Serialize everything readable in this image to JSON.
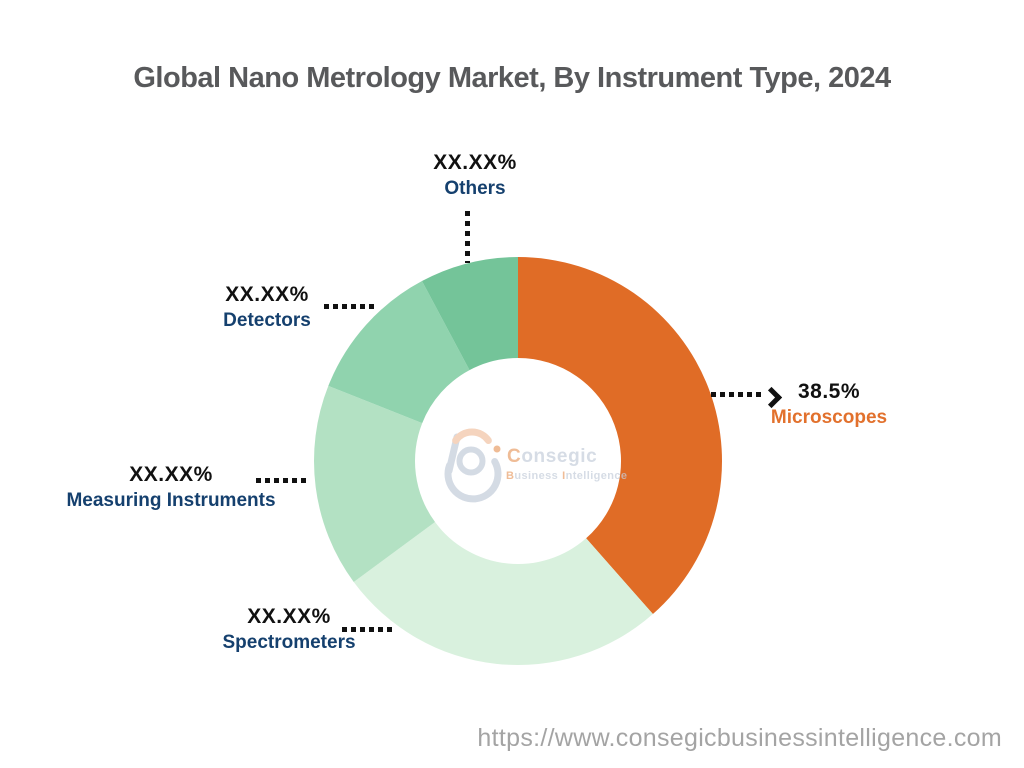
{
  "title": "Global Nano Metrology Market, By Instrument Type, 2024",
  "footer_url": "https://www.consegicbusinessintelligence.com",
  "logo": {
    "name_first": "C",
    "name_rest": "onsegic",
    "sub_first": "B",
    "sub_mid": "usiness",
    "sub_i": "I",
    "sub_rest": "ntelligence"
  },
  "colors": {
    "accent_orange": "#E06C26",
    "label_navy": "#15406E",
    "label_black": "#111111",
    "title_gray": "#58595B",
    "url_gray": "#A4A4A4"
  },
  "chart_data": {
    "type": "pie",
    "subtype": "donut",
    "title": "Global Nano Metrology Market, By Instrument Type, 2024",
    "direction": "clockwise",
    "start_angle_deg_from_top": 0,
    "inner_radius_ratio": 0.5,
    "legend": "none",
    "segments": [
      {
        "label": "Microscopes",
        "value_label": "38.5%",
        "share_pct": 38.5,
        "share_is_estimate": false,
        "color": "#E06C26"
      },
      {
        "label": "Spectrometers",
        "value_label": "XX.XX%",
        "share_pct": 26.4,
        "share_is_estimate": true,
        "color": "#D9F1DE"
      },
      {
        "label": "Measuring Instruments",
        "value_label": "XX.XX%",
        "share_pct": 16.1,
        "share_is_estimate": true,
        "color": "#B3E1C3"
      },
      {
        "label": "Detectors",
        "value_label": "XX.XX%",
        "share_pct": 11.2,
        "share_is_estimate": true,
        "color": "#90D3AE"
      },
      {
        "label": "Others",
        "value_label": "XX.XX%",
        "share_pct": 7.8,
        "share_is_estimate": true,
        "color": "#74C499"
      }
    ]
  }
}
